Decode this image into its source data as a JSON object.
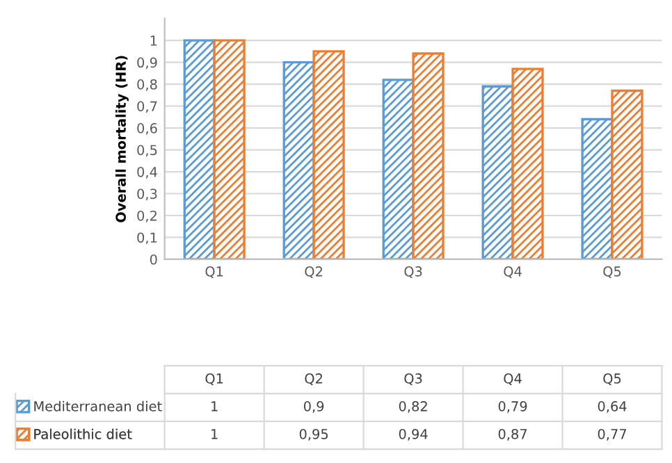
{
  "chart_data": {
    "type": "bar",
    "ylabel": "Overall mortality (HR)",
    "categories": [
      "Q1",
      "Q2",
      "Q3",
      "Q4",
      "Q5"
    ],
    "series": [
      {
        "name": "Mediterranean diet",
        "color": "#5b9bd5",
        "values": [
          1,
          0.9,
          0.82,
          0.79,
          0.64
        ],
        "value_labels": [
          "1",
          "0,9",
          "0,82",
          "0,79",
          "0,64"
        ]
      },
      {
        "name": "Paleolithic diet",
        "color": "#ed7d31",
        "values": [
          1,
          0.95,
          0.94,
          0.87,
          0.77
        ],
        "value_labels": [
          "1",
          "0,95",
          "0,94",
          "0,87",
          "0,77"
        ]
      }
    ],
    "ylim": [
      0,
      1.1
    ],
    "yticks": [
      0,
      {
        "value": 0.1,
        "label": "0,1"
      },
      {
        "value": 0.2,
        "label": "0,2"
      },
      {
        "value": 0.3,
        "label": "0,3"
      },
      {
        "value": 0.4,
        "label": "0,4"
      },
      {
        "value": 0.5,
        "label": "0,5"
      },
      {
        "value": 0.6,
        "label": "0,6"
      },
      {
        "value": 0.7,
        "label": "0,7"
      },
      {
        "value": 0.8,
        "label": "0,8"
      },
      {
        "value": 0.9,
        "label": "0,9"
      },
      1
    ],
    "grid": "y",
    "legend": "bottom"
  }
}
